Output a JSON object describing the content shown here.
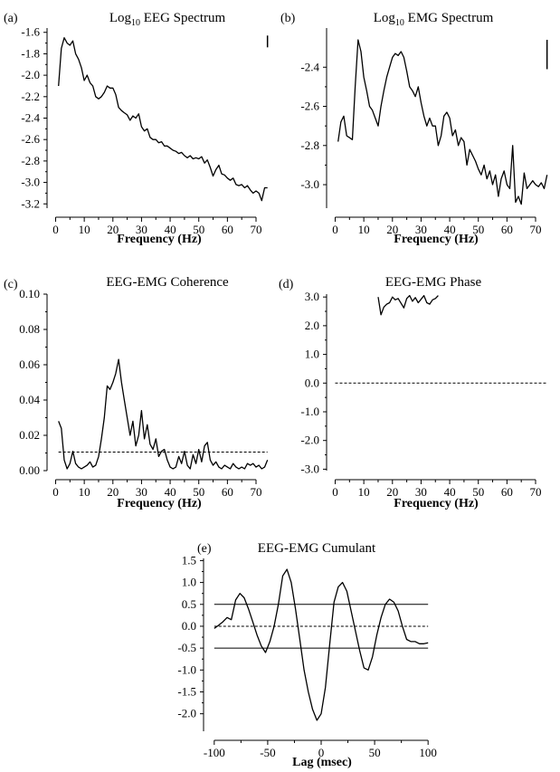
{
  "chart_data": [
    {
      "panel": "(a)",
      "type": "line",
      "title": "Log10 EEG Spectrum",
      "title_base": "Log",
      "title_sub": "10",
      "title_rest": " EEG Spectrum",
      "xlabel": "Frequency (Hz)",
      "ylabel": "",
      "xlim": [
        -3,
        76
      ],
      "ylim": [
        -3.24,
        -1.56
      ],
      "xticks": [
        0,
        10,
        20,
        30,
        40,
        50,
        60,
        70
      ],
      "yticks": [
        -1.6,
        -1.8,
        -2.0,
        -2.2,
        -2.4,
        -2.6,
        -2.8,
        -3.0,
        -3.2
      ],
      "ytick_labels": [
        "-1.6",
        "-1.8",
        "-2.0",
        "-2.2",
        "-2.4",
        "-2.6",
        "-2.8",
        "-3.0",
        "-3.2"
      ],
      "grid": false,
      "scale_bar": {
        "x": 74,
        "y0": -1.63,
        "y1": -1.74
      },
      "series": [
        {
          "x": [
            1,
            2,
            3,
            4,
            5,
            6,
            7,
            8,
            9,
            10,
            11,
            12,
            13,
            14,
            15,
            16,
            17,
            18,
            19,
            20,
            21,
            22,
            23,
            24,
            25,
            26,
            27,
            28,
            29,
            30,
            31,
            32,
            33,
            34,
            35,
            36,
            37,
            38,
            39,
            40,
            41,
            42,
            43,
            44,
            45,
            46,
            47,
            48,
            49,
            50,
            51,
            52,
            53,
            54,
            55,
            56,
            57,
            58,
            59,
            60,
            61,
            62,
            63,
            64,
            65,
            66,
            67,
            68,
            69,
            70,
            71,
            72,
            73,
            74
          ],
          "y": [
            -2.1,
            -1.75,
            -1.65,
            -1.7,
            -1.72,
            -1.68,
            -1.8,
            -1.85,
            -1.93,
            -2.05,
            -2.0,
            -2.07,
            -2.1,
            -2.2,
            -2.22,
            -2.2,
            -2.16,
            -2.1,
            -2.12,
            -2.12,
            -2.18,
            -2.3,
            -2.33,
            -2.35,
            -2.37,
            -2.42,
            -2.38,
            -2.4,
            -2.36,
            -2.48,
            -2.52,
            -2.5,
            -2.58,
            -2.6,
            -2.6,
            -2.63,
            -2.62,
            -2.66,
            -2.66,
            -2.68,
            -2.7,
            -2.71,
            -2.73,
            -2.72,
            -2.75,
            -2.77,
            -2.75,
            -2.78,
            -2.77,
            -2.78,
            -2.76,
            -2.82,
            -2.79,
            -2.86,
            -2.94,
            -2.88,
            -2.84,
            -2.92,
            -2.93,
            -2.96,
            -2.98,
            -2.96,
            -3.02,
            -3.03,
            -3.02,
            -3.05,
            -3.03,
            -3.07,
            -3.1,
            -3.08,
            -3.1,
            -3.17,
            -3.05,
            -3.05
          ]
        }
      ]
    },
    {
      "panel": "(b)",
      "type": "line",
      "title": "Log10 EMG Spectrum",
      "title_base": "Log",
      "title_sub": "10",
      "title_rest": " EMG Spectrum",
      "xlabel": "Frequency (Hz)",
      "ylabel": "",
      "xlim": [
        -3,
        76
      ],
      "ylim": [
        -3.12,
        -2.2
      ],
      "xticks": [
        0,
        10,
        20,
        30,
        40,
        50,
        60,
        70
      ],
      "yticks": [
        -2.4,
        -2.6,
        -2.8,
        -3.0
      ],
      "ytick_labels": [
        "-2.4",
        "-2.6",
        "-2.8",
        "-3.0"
      ],
      "grid": false,
      "scale_bar": {
        "x": 74,
        "y0": -2.26,
        "y1": -2.41
      },
      "series": [
        {
          "x": [
            1,
            2,
            3,
            4,
            5,
            6,
            7,
            8,
            9,
            10,
            11,
            12,
            13,
            14,
            15,
            16,
            17,
            18,
            19,
            20,
            21,
            22,
            23,
            24,
            25,
            26,
            27,
            28,
            29,
            30,
            31,
            32,
            33,
            34,
            35,
            36,
            37,
            38,
            39,
            40,
            41,
            42,
            43,
            44,
            45,
            46,
            47,
            48,
            49,
            50,
            51,
            52,
            53,
            54,
            55,
            56,
            57,
            58,
            59,
            60,
            61,
            62,
            63,
            64,
            65,
            66,
            67,
            68,
            69,
            70,
            71,
            72,
            73,
            74
          ],
          "y": [
            -2.78,
            -2.68,
            -2.65,
            -2.75,
            -2.76,
            -2.77,
            -2.5,
            -2.26,
            -2.32,
            -2.45,
            -2.52,
            -2.6,
            -2.62,
            -2.66,
            -2.7,
            -2.6,
            -2.52,
            -2.45,
            -2.4,
            -2.35,
            -2.33,
            -2.34,
            -2.32,
            -2.35,
            -2.42,
            -2.5,
            -2.52,
            -2.55,
            -2.5,
            -2.58,
            -2.65,
            -2.7,
            -2.66,
            -2.7,
            -2.7,
            -2.8,
            -2.75,
            -2.65,
            -2.63,
            -2.66,
            -2.75,
            -2.72,
            -2.8,
            -2.76,
            -2.78,
            -2.9,
            -2.82,
            -2.85,
            -2.88,
            -2.92,
            -2.95,
            -2.9,
            -2.97,
            -2.93,
            -3.0,
            -2.95,
            -3.06,
            -2.97,
            -2.93,
            -3.0,
            -3.02,
            -2.8,
            -3.09,
            -3.06,
            -3.1,
            -2.94,
            -3.02,
            -3.0,
            -2.98,
            -3.0,
            -3.01,
            -2.99,
            -3.02,
            -2.95
          ]
        }
      ]
    },
    {
      "panel": "(c)",
      "type": "line",
      "title": "EEG-EMG Coherence",
      "xlabel": "Frequency (Hz)",
      "ylabel": "",
      "xlim": [
        -3,
        76
      ],
      "ylim": [
        0,
        0.1
      ],
      "xticks": [
        0,
        10,
        20,
        30,
        40,
        50,
        60,
        70
      ],
      "yticks": [
        0.0,
        0.02,
        0.04,
        0.06,
        0.08,
        0.1
      ],
      "ytick_labels": [
        "0.00",
        "0.02",
        "0.04",
        "0.06",
        "0.08",
        "0.10"
      ],
      "grid": false,
      "reference_lines": [
        {
          "y": 0.0105,
          "style": "dashed",
          "x0": 1,
          "x1": 74
        }
      ],
      "series": [
        {
          "x": [
            1,
            2,
            3,
            4,
            5,
            6,
            7,
            8,
            9,
            10,
            11,
            12,
            13,
            14,
            15,
            16,
            17,
            18,
            19,
            20,
            21,
            22,
            23,
            24,
            25,
            26,
            27,
            28,
            29,
            30,
            31,
            32,
            33,
            34,
            35,
            36,
            37,
            38,
            39,
            40,
            41,
            42,
            43,
            44,
            45,
            46,
            47,
            48,
            49,
            50,
            51,
            52,
            53,
            54,
            55,
            56,
            57,
            58,
            59,
            60,
            61,
            62,
            63,
            64,
            65,
            66,
            67,
            68,
            69,
            70,
            71,
            72,
            73,
            74
          ],
          "y": [
            0.028,
            0.024,
            0.006,
            0.001,
            0.004,
            0.011,
            0.004,
            0.002,
            0.001,
            0.002,
            0.003,
            0.005,
            0.002,
            0.003,
            0.008,
            0.018,
            0.03,
            0.048,
            0.046,
            0.05,
            0.055,
            0.063,
            0.05,
            0.04,
            0.03,
            0.02,
            0.028,
            0.014,
            0.02,
            0.034,
            0.018,
            0.026,
            0.015,
            0.012,
            0.018,
            0.008,
            0.011,
            0.012,
            0.006,
            0.002,
            0.001,
            0.002,
            0.008,
            0.004,
            0.011,
            0.003,
            0.001,
            0.009,
            0.004,
            0.012,
            0.005,
            0.014,
            0.016,
            0.006,
            0.003,
            0.005,
            0.002,
            0.001,
            0.003,
            0.002,
            0.001,
            0.004,
            0.002,
            0.001,
            0.002,
            0.001,
            0.004,
            0.003,
            0.004,
            0.002,
            0.003,
            0.001,
            0.002,
            0.006
          ]
        }
      ]
    },
    {
      "panel": "(d)",
      "type": "line",
      "title": "EEG-EMG Phase",
      "xlabel": "Frequency (Hz)",
      "ylabel": "",
      "xlim": [
        -3,
        76
      ],
      "ylim": [
        -3.05,
        3.1
      ],
      "xticks": [
        0,
        10,
        20,
        30,
        40,
        50,
        60,
        70
      ],
      "yticks": [
        3,
        2,
        1,
        0,
        -1,
        -2,
        -3
      ],
      "ytick_labels": [
        "3.0",
        "2.0",
        "1.0",
        "0.0",
        "-1.0",
        "-2.0",
        "-3.0"
      ],
      "grid": false,
      "reference_lines": [
        {
          "y": 0,
          "style": "dashed",
          "x0": 0,
          "x1": 74
        }
      ],
      "series": [
        {
          "x": [
            15,
            16,
            17,
            18,
            19,
            20,
            21,
            22,
            23,
            24,
            25,
            26,
            27,
            28,
            29,
            30,
            31,
            32,
            33,
            34,
            35,
            36
          ],
          "y": [
            3.0,
            2.38,
            2.65,
            2.75,
            2.8,
            3.0,
            2.9,
            2.95,
            2.78,
            2.62,
            2.95,
            3.05,
            2.85,
            2.98,
            2.8,
            2.92,
            3.05,
            2.8,
            2.75,
            2.9,
            2.95,
            3.05
          ]
        }
      ]
    },
    {
      "panel": "(e)",
      "type": "line",
      "title": "EEG-EMG Cumulant",
      "xlabel": "Lag (msec)",
      "ylabel": "",
      "xlim": [
        -110,
        110
      ],
      "ylim": [
        -2.4,
        1.55
      ],
      "xticks": [
        -100,
        -50,
        0,
        50,
        100
      ],
      "xtick_labels": [
        "-100",
        "-50",
        "0",
        "50",
        "100"
      ],
      "yticks": [
        1.5,
        1.0,
        0.5,
        0.0,
        -0.5,
        -1.0,
        -1.5,
        -2.0
      ],
      "ytick_labels": [
        "1.5",
        "1.0",
        "0.5",
        "0.0",
        "-0.5",
        "-1.0",
        "-1.5",
        "-2.0"
      ],
      "grid": false,
      "reference_lines": [
        {
          "y": 0.5,
          "style": "solid",
          "x0": -100,
          "x1": 100
        },
        {
          "y": -0.5,
          "style": "solid",
          "x0": -100,
          "x1": 100
        },
        {
          "y": 0.0,
          "style": "dashed",
          "x0": -100,
          "x1": 100
        }
      ],
      "series": [
        {
          "x": [
            -100,
            -96,
            -92,
            -88,
            -84,
            -80,
            -76,
            -72,
            -68,
            -64,
            -60,
            -56,
            -52,
            -48,
            -44,
            -40,
            -36,
            -32,
            -28,
            -24,
            -20,
            -16,
            -12,
            -8,
            -4,
            0,
            4,
            8,
            12,
            16,
            20,
            24,
            28,
            32,
            36,
            40,
            44,
            48,
            52,
            56,
            60,
            64,
            68,
            72,
            76,
            80,
            84,
            88,
            92,
            96,
            100
          ],
          "y": [
            -0.05,
            0.02,
            0.1,
            0.2,
            0.15,
            0.6,
            0.75,
            0.65,
            0.4,
            0.1,
            -0.2,
            -0.45,
            -0.6,
            -0.35,
            0.0,
            0.5,
            1.15,
            1.3,
            1.0,
            0.4,
            -0.3,
            -1.0,
            -1.5,
            -1.9,
            -2.15,
            -2.0,
            -1.4,
            -0.4,
            0.55,
            0.9,
            1.0,
            0.8,
            0.35,
            -0.1,
            -0.55,
            -0.95,
            -1.0,
            -0.7,
            -0.2,
            0.2,
            0.5,
            0.62,
            0.55,
            0.35,
            0.0,
            -0.3,
            -0.35,
            -0.35,
            -0.4,
            -0.4,
            -0.38
          ]
        }
      ]
    }
  ]
}
